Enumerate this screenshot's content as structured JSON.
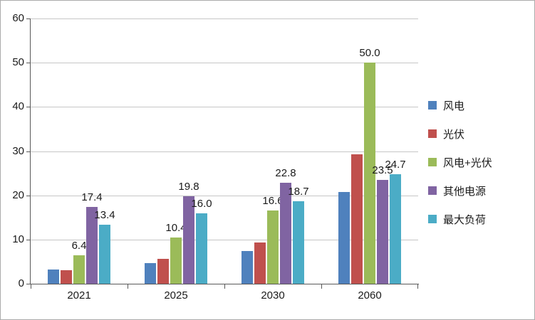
{
  "chart_data": {
    "type": "bar",
    "title": "",
    "categories": [
      "2021",
      "2025",
      "2030",
      "2060"
    ],
    "series": [
      {
        "key": "wind",
        "name": "风电",
        "color": "#4F81BD",
        "values": [
          3.3,
          4.7,
          7.4,
          20.8
        ]
      },
      {
        "key": "solar-pv",
        "name": "光伏",
        "color": "#C0504D",
        "values": [
          3.1,
          5.7,
          9.3,
          29.2
        ]
      },
      {
        "key": "wind-plus-solar",
        "name": "风电+光伏",
        "color": "#9BBB59",
        "values": [
          6.4,
          10.4,
          16.6,
          50.0
        ],
        "data_labels": [
          "6.4",
          "10.4",
          "16.6",
          "50.0"
        ]
      },
      {
        "key": "other-sources",
        "name": "其他电源",
        "color": "#8064A2",
        "values": [
          17.4,
          19.8,
          22.8,
          23.5
        ],
        "data_labels": [
          "17.4",
          "19.8",
          "22.8",
          "23.5"
        ]
      },
      {
        "key": "max-load",
        "name": "最大负荷",
        "color": "#4BACC6",
        "values": [
          13.4,
          16.0,
          18.7,
          24.7
        ],
        "data_labels": [
          "13.4",
          "16.0",
          "18.7",
          "24.7"
        ]
      }
    ],
    "ylim": [
      0,
      60
    ],
    "ytick_step": 10,
    "ytick_labels": [
      "0",
      "10",
      "20",
      "30",
      "40",
      "50",
      "60"
    ],
    "grid": true,
    "legend_position": "right",
    "axis_color": "#595959",
    "gridline_color": "#c6c6c6"
  }
}
